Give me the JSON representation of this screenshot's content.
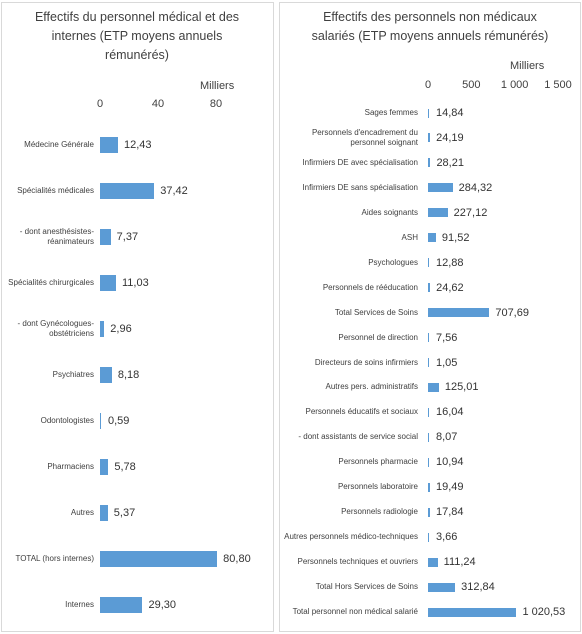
{
  "chart_data": [
    {
      "type": "bar",
      "orientation": "horizontal",
      "title": "Effectifs du personnel médical et des internes (ETP moyens annuels rémunérés)",
      "axis_label": "Milliers",
      "categories": [
        "Médecine Générale",
        "Spécialités médicales",
        "- dont anesthésistes-réanimateurs",
        "Spécialités chirurgicales",
        "- dont Gynécologues-obstétriciens",
        "Psychiatres",
        "Odontologistes",
        "Pharmaciens",
        "Autres",
        "TOTAL (hors internes)",
        "Internes"
      ],
      "values": [
        12.43,
        37.42,
        7.37,
        11.03,
        2.96,
        8.18,
        0.59,
        5.78,
        5.37,
        80.8,
        29.3
      ],
      "value_labels": [
        "12,43",
        "37,42",
        "7,37",
        "11,03",
        "2,96",
        "8,18",
        "0,59",
        "5,78",
        "5,37",
        "80,80",
        "29,30"
      ],
      "color": "#5b9bd5",
      "xlim": [
        0,
        100
      ],
      "xticks": [
        0,
        40,
        80
      ]
    },
    {
      "type": "bar",
      "orientation": "horizontal",
      "title": "Effectifs des personnels non médicaux salariés (ETP moyens annuels rémunérés)",
      "axis_label": "Milliers",
      "categories": [
        "Sages femmes",
        "Personnels d'encadrement du personnel soignant",
        "Infirmiers DE avec spécialisation",
        "Infirmiers DE sans spécialisation",
        "Aides soignants",
        "ASH",
        "Psychologues",
        "Personnels de rééducation",
        "Total Services de Soins",
        "Personnel de direction",
        "Directeurs de soins infirmiers",
        "Autres pers. administratifs",
        "Personnels éducatifs et sociaux",
        "- dont assistants de service social",
        "Personnels pharmacie",
        "Personnels laboratoire",
        "Personnels radiologie",
        "Autres personnels médico-techniques",
        "Personnels techniques et ouvriers",
        "Total Hors Services de Soins",
        "Total personnel non médical salarié"
      ],
      "values": [
        14.84,
        24.19,
        28.21,
        284.32,
        227.12,
        91.52,
        12.88,
        24.62,
        707.69,
        7.56,
        1.05,
        125.01,
        16.04,
        8.07,
        10.94,
        19.49,
        17.84,
        3.66,
        111.24,
        312.84,
        1020.53
      ],
      "value_labels": [
        "14,84",
        "24,19",
        "28,21",
        "284,32",
        "227,12",
        "91,52",
        "12,88",
        "24,62",
        "707,69",
        "7,56",
        "1,05",
        "125,01",
        "16,04",
        "8,07",
        "10,94",
        "19,49",
        "17,84",
        "3,66",
        "111,24",
        "312,84",
        "1 020,53"
      ],
      "color": "#5b9bd5",
      "xlim": [
        0,
        1500
      ],
      "xticks": [
        0,
        500,
        {
          "value": 1000,
          "label": "1 000"
        },
        {
          "value": 1500,
          "label": "1 500"
        }
      ]
    }
  ]
}
